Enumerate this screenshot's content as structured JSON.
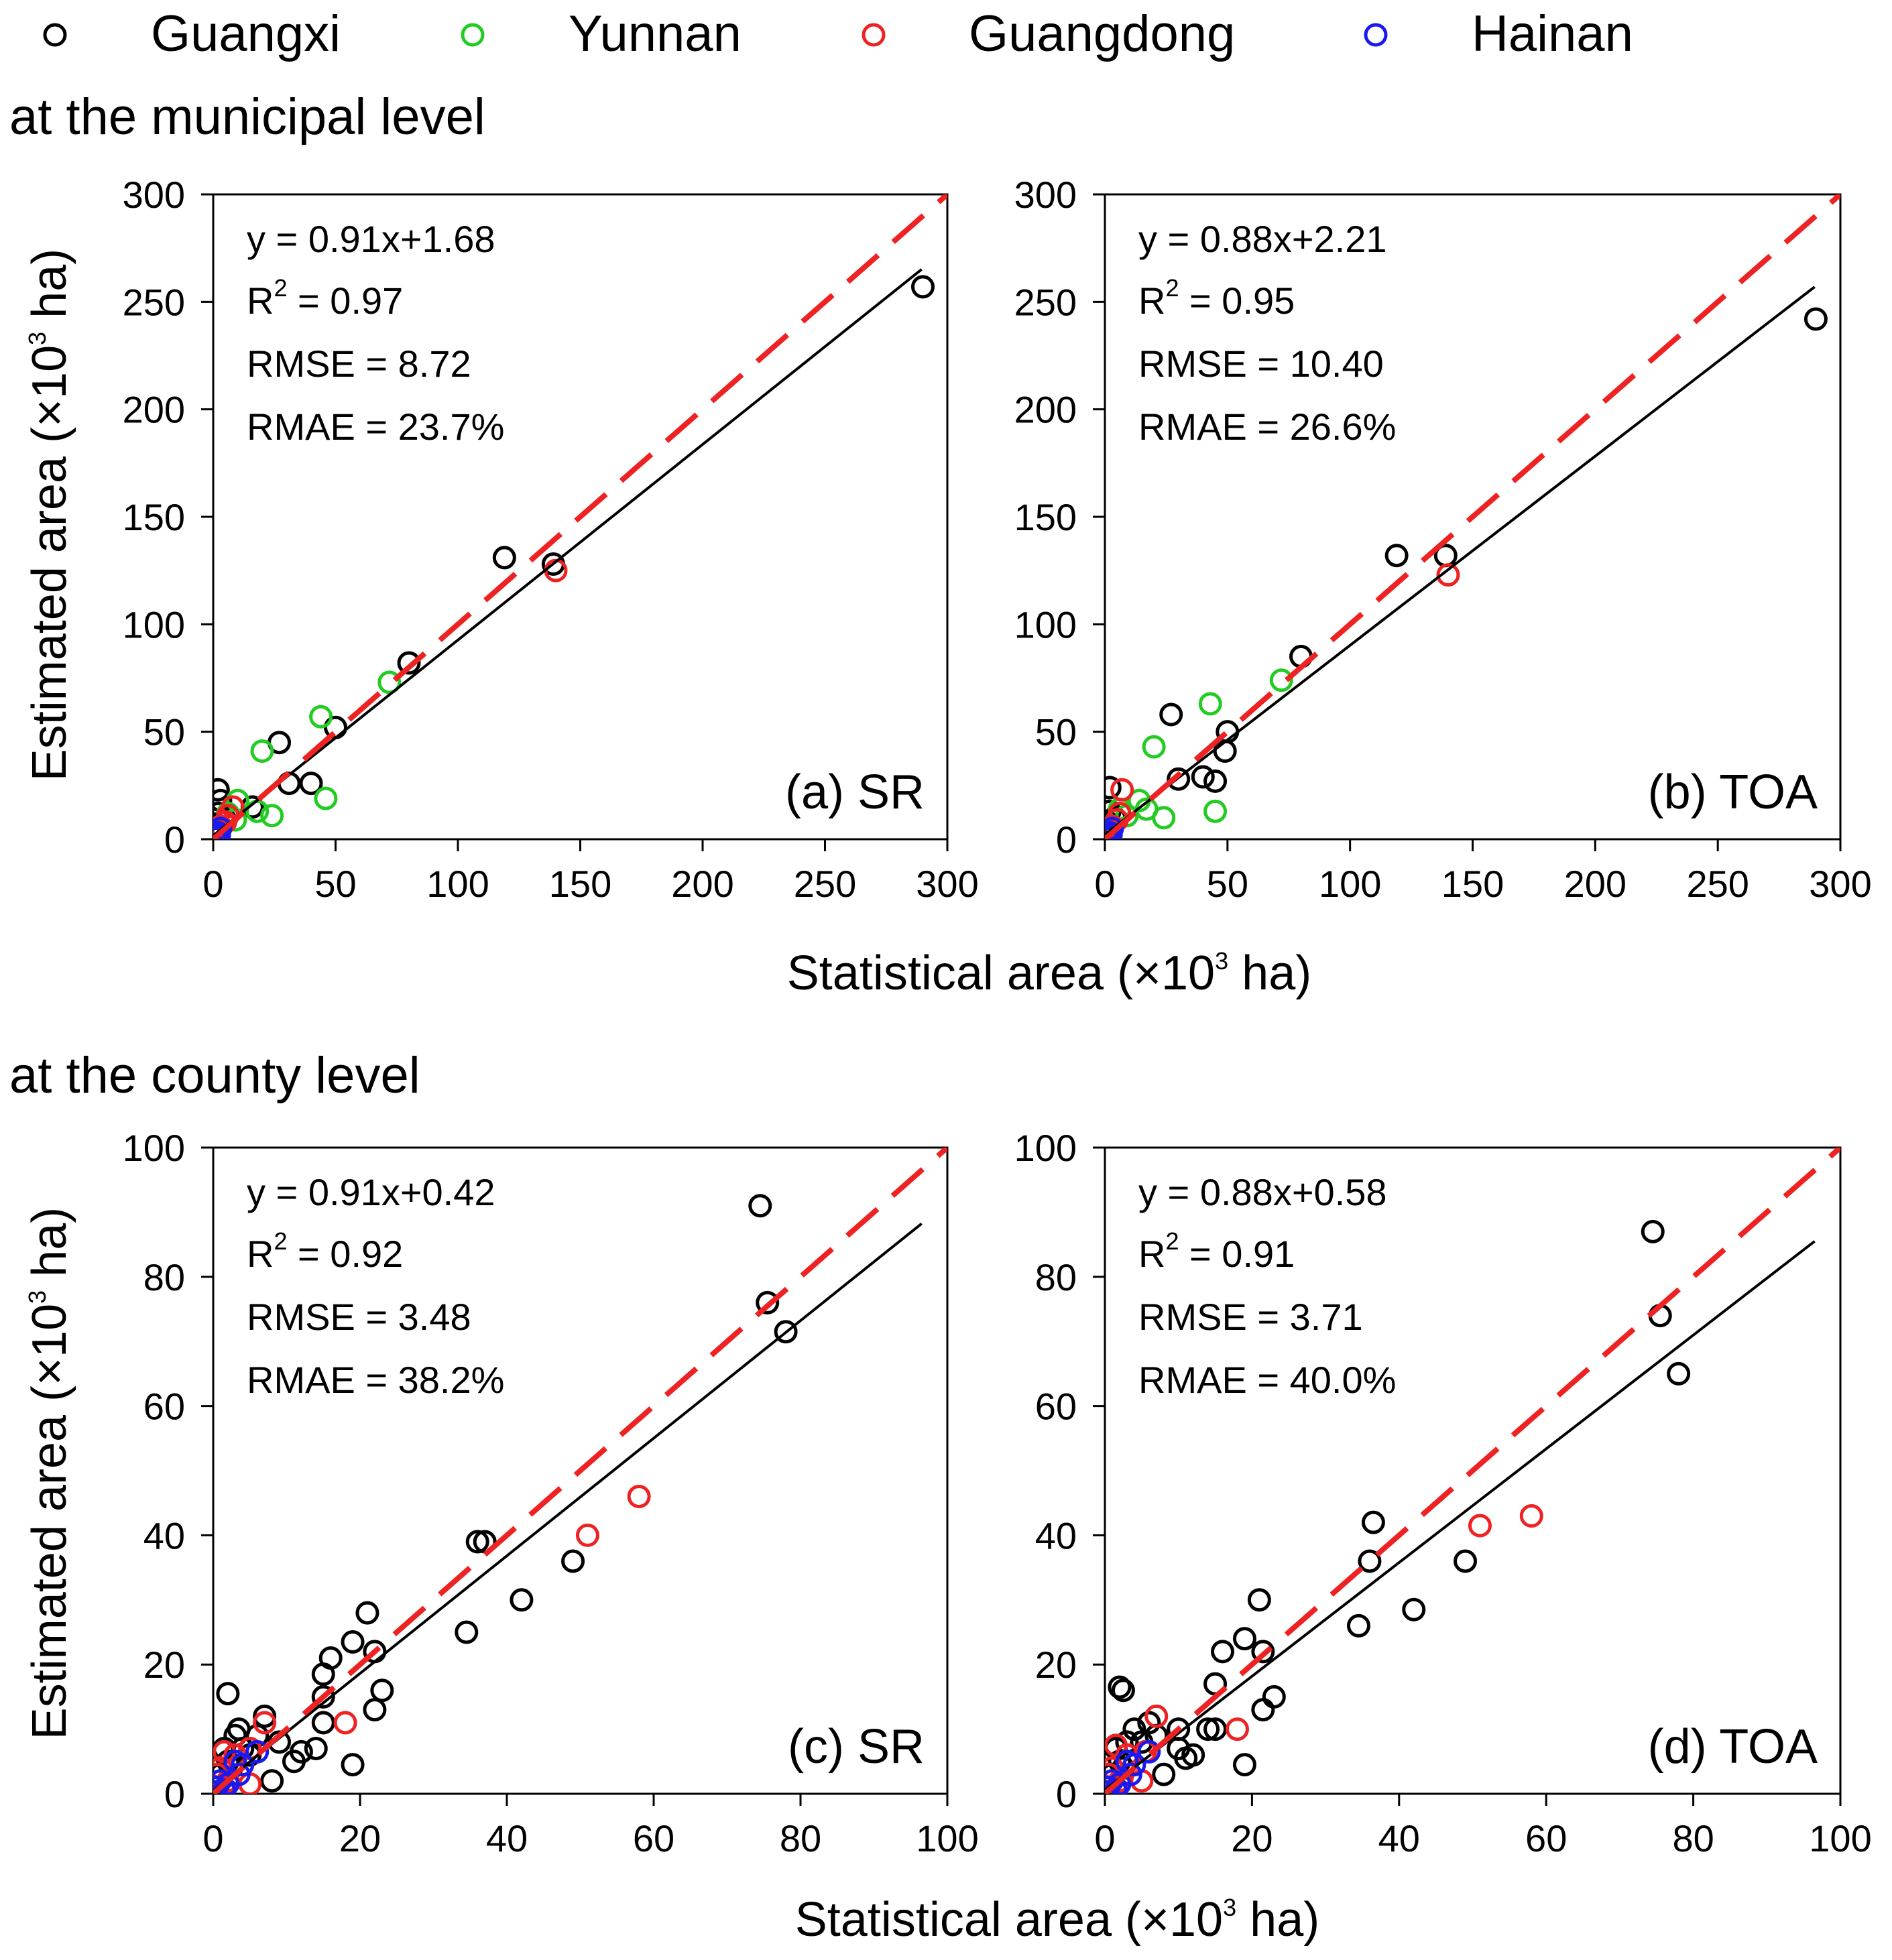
{
  "legend": [
    {
      "label": "Guangxi",
      "color": "#000000"
    },
    {
      "label": "Yunnan",
      "color": "#22cc22"
    },
    {
      "label": "Guangdong",
      "color": "#ee2222"
    },
    {
      "label": "Hainan",
      "color": "#1a1aee"
    }
  ],
  "sections": {
    "municipal": "at the municipal level",
    "county": "at the county level"
  },
  "axis_titles": {
    "y_prefix": "Estimated area (×10",
    "x_prefix": "Statistical area (×10",
    "exp": "3",
    "suffix": " ha)"
  },
  "chart_data": [
    {
      "type": "scatter",
      "panel": "(a) SR",
      "level": "municipal",
      "xlim": [
        0,
        300
      ],
      "ylim": [
        0,
        300
      ],
      "xticks": [
        0,
        50,
        100,
        150,
        200,
        250,
        300
      ],
      "yticks": [
        0,
        50,
        100,
        150,
        200,
        250,
        300
      ],
      "stats": {
        "equation": "y = 0.91x+1.68",
        "r2_prefix": "R",
        "r2_exp": "2",
        "r2_value": " = 0.97",
        "rmse": "RMSE = 8.72",
        "rmae": "RMAE = 23.7%"
      },
      "fit": {
        "slope": 0.91,
        "intercept": 1.68
      },
      "one_to_one": true,
      "series": [
        {
          "name": "Guangxi",
          "points": [
            [
              290,
              257
            ],
            [
              139,
              128
            ],
            [
              119,
              131
            ],
            [
              80,
              82
            ],
            [
              50,
              52
            ],
            [
              27,
              45
            ],
            [
              31,
              26
            ],
            [
              40,
              26
            ],
            [
              16,
              15
            ],
            [
              2,
              23
            ],
            [
              3,
              18
            ],
            [
              2,
              12
            ],
            [
              1,
              7
            ],
            [
              5,
              9
            ]
          ]
        },
        {
          "name": "Yunnan",
          "points": [
            [
              72,
              73
            ],
            [
              44,
              57
            ],
            [
              46,
              19
            ],
            [
              20,
              41
            ],
            [
              24,
              11
            ],
            [
              10,
              18
            ],
            [
              18,
              13
            ],
            [
              9,
              9
            ],
            [
              6,
              12
            ]
          ]
        },
        {
          "name": "Guangdong",
          "points": [
            [
              140,
              125
            ],
            [
              8,
              15
            ],
            [
              5,
              8
            ],
            [
              3,
              6
            ],
            [
              2,
              4
            ],
            [
              6,
              11
            ]
          ]
        },
        {
          "name": "Hainan",
          "points": [
            [
              1,
              2
            ],
            [
              2,
              3
            ],
            [
              0.5,
              1
            ],
            [
              3,
              5
            ],
            [
              1.5,
              0.5
            ],
            [
              2.5,
              2
            ]
          ]
        }
      ]
    },
    {
      "type": "scatter",
      "panel": "(b) TOA",
      "level": "municipal",
      "xlim": [
        0,
        300
      ],
      "ylim": [
        0,
        300
      ],
      "xticks": [
        0,
        50,
        100,
        150,
        200,
        250,
        300
      ],
      "yticks": [
        0,
        50,
        100,
        150,
        200,
        250,
        300
      ],
      "stats": {
        "equation": "y = 0.88x+2.21",
        "r2_prefix": "R",
        "r2_exp": "2",
        "r2_value": " = 0.95",
        "rmse": "RMSE = 10.40",
        "rmae": "RMAE = 26.6%"
      },
      "fit": {
        "slope": 0.88,
        "intercept": 2.21
      },
      "one_to_one": true,
      "series": [
        {
          "name": "Guangxi",
          "points": [
            [
              290,
              242
            ],
            [
              139,
              132
            ],
            [
              119,
              132
            ],
            [
              80,
              85
            ],
            [
              50,
              50
            ],
            [
              49,
              41
            ],
            [
              27,
              58
            ],
            [
              30,
              28
            ],
            [
              40,
              29
            ],
            [
              45,
              27
            ],
            [
              2,
              24
            ],
            [
              2,
              13
            ],
            [
              1,
              8
            ],
            [
              4,
              10
            ]
          ]
        },
        {
          "name": "Yunnan",
          "points": [
            [
              72,
              74
            ],
            [
              43,
              63
            ],
            [
              45,
              13
            ],
            [
              20,
              43
            ],
            [
              24,
              10
            ],
            [
              14,
              18
            ],
            [
              17,
              14
            ],
            [
              9,
              11
            ],
            [
              6,
              14
            ]
          ]
        },
        {
          "name": "Guangdong",
          "points": [
            [
              140,
              123
            ],
            [
              7,
              23
            ],
            [
              5,
              9
            ],
            [
              3,
              6
            ],
            [
              2,
              4
            ],
            [
              6,
              12
            ]
          ]
        },
        {
          "name": "Hainan",
          "points": [
            [
              1,
              2
            ],
            [
              2,
              3
            ],
            [
              0.5,
              1
            ],
            [
              3,
              5
            ],
            [
              1.5,
              0.5
            ],
            [
              2.5,
              2
            ]
          ]
        }
      ]
    },
    {
      "type": "scatter",
      "panel": "(c) SR",
      "level": "county",
      "xlim": [
        0,
        100
      ],
      "ylim": [
        0,
        100
      ],
      "xticks": [
        0,
        20,
        40,
        60,
        80,
        100
      ],
      "yticks": [
        0,
        20,
        40,
        60,
        80,
        100
      ],
      "stats": {
        "equation": "y = 0.91x+0.42",
        "r2_prefix": "R",
        "r2_exp": "2",
        "r2_value": " = 0.92",
        "rmse": "RMSE = 3.48",
        "rmae": "RMAE = 38.2%"
      },
      "fit": {
        "slope": 0.91,
        "intercept": 0.42
      },
      "one_to_one": true,
      "series": [
        {
          "name": "Guangxi",
          "points": [
            [
              74.5,
              91
            ],
            [
              75.5,
              76
            ],
            [
              78,
              71.5
            ],
            [
              49,
              36
            ],
            [
              42,
              30
            ],
            [
              36,
              39
            ],
            [
              37,
              39
            ],
            [
              34.5,
              25
            ],
            [
              21,
              28
            ],
            [
              22,
              22
            ],
            [
              23,
              16
            ],
            [
              22,
              13
            ],
            [
              19,
              23.5
            ],
            [
              16,
              21
            ],
            [
              15,
              18.5
            ],
            [
              15,
              15
            ],
            [
              15,
              11
            ],
            [
              14,
              7
            ],
            [
              12,
              6.5
            ],
            [
              11,
              5
            ],
            [
              9,
              8
            ],
            [
              8,
              2
            ],
            [
              7,
              12
            ],
            [
              6,
              9
            ],
            [
              5,
              6
            ],
            [
              4,
              7
            ],
            [
              3,
              9
            ],
            [
              3.5,
              10
            ],
            [
              2,
              15.5
            ],
            [
              2,
              5
            ],
            [
              1,
              3
            ],
            [
              1.5,
              7
            ],
            [
              0.5,
              1
            ],
            [
              2.5,
              4
            ],
            [
              19,
              4.5
            ]
          ]
        },
        {
          "name": "Guangdong",
          "points": [
            [
              58,
              46
            ],
            [
              51,
              40
            ],
            [
              18,
              11
            ],
            [
              7,
              11
            ],
            [
              5,
              7
            ],
            [
              5,
              1.5
            ],
            [
              1.5,
              6.5
            ],
            [
              1,
              4
            ],
            [
              0.5,
              3
            ],
            [
              2,
              2
            ],
            [
              3,
              6
            ]
          ]
        },
        {
          "name": "Hainan",
          "points": [
            [
              6,
              6.5
            ],
            [
              3,
              5
            ],
            [
              1,
              2
            ],
            [
              0.5,
              1
            ],
            [
              2,
              1.5
            ],
            [
              3.5,
              3
            ],
            [
              1.5,
              0.5
            ],
            [
              0.3,
              0.3
            ],
            [
              4,
              4.5
            ]
          ]
        }
      ]
    },
    {
      "type": "scatter",
      "panel": "(d) TOA",
      "level": "county",
      "xlim": [
        0,
        100
      ],
      "ylim": [
        0,
        100
      ],
      "xticks": [
        0,
        20,
        40,
        60,
        80,
        100
      ],
      "yticks": [
        0,
        20,
        40,
        60,
        80,
        100
      ],
      "stats": {
        "equation": "y = 0.88x+0.58",
        "r2_prefix": "R",
        "r2_exp": "2",
        "r2_value": " = 0.91",
        "rmse": "RMSE = 3.71",
        "rmae": "RMAE = 40.0%"
      },
      "fit": {
        "slope": 0.88,
        "intercept": 0.58
      },
      "one_to_one": true,
      "series": [
        {
          "name": "Guangxi",
          "points": [
            [
              74.5,
              87
            ],
            [
              75.5,
              74
            ],
            [
              78,
              65
            ],
            [
              49,
              36
            ],
            [
              42,
              28.5
            ],
            [
              36.5,
              42
            ],
            [
              36,
              36
            ],
            [
              34.5,
              26
            ],
            [
              21,
              30
            ],
            [
              21.5,
              22
            ],
            [
              23,
              15
            ],
            [
              21.5,
              13
            ],
            [
              19,
              24
            ],
            [
              16,
              22
            ],
            [
              15,
              17
            ],
            [
              15,
              10
            ],
            [
              14,
              10
            ],
            [
              12,
              6
            ],
            [
              11,
              5.5
            ],
            [
              10,
              7
            ],
            [
              8,
              3
            ],
            [
              7,
              9
            ],
            [
              6,
              11
            ],
            [
              5,
              8
            ],
            [
              4,
              10
            ],
            [
              3,
              8
            ],
            [
              2,
              16.5
            ],
            [
              2.5,
              16
            ],
            [
              2,
              5
            ],
            [
              1,
              3
            ],
            [
              1.5,
              7
            ],
            [
              0.5,
              1
            ],
            [
              2.5,
              4
            ],
            [
              19,
              4.5
            ],
            [
              10,
              10
            ]
          ]
        },
        {
          "name": "Guangdong",
          "points": [
            [
              58,
              43
            ],
            [
              51,
              41.5
            ],
            [
              18,
              10
            ],
            [
              7,
              12
            ],
            [
              5,
              2
            ],
            [
              5.5,
              6.5
            ],
            [
              1.5,
              7.5
            ],
            [
              1,
              4
            ],
            [
              0.5,
              3
            ],
            [
              2,
              2
            ],
            [
              3,
              6
            ]
          ]
        },
        {
          "name": "Hainan",
          "points": [
            [
              6,
              6.5
            ],
            [
              3,
              5
            ],
            [
              1,
              2
            ],
            [
              0.5,
              1
            ],
            [
              2,
              1.5
            ],
            [
              3.5,
              3
            ],
            [
              1.5,
              0.5
            ],
            [
              0.3,
              0.3
            ],
            [
              4,
              4.5
            ]
          ]
        }
      ]
    }
  ]
}
